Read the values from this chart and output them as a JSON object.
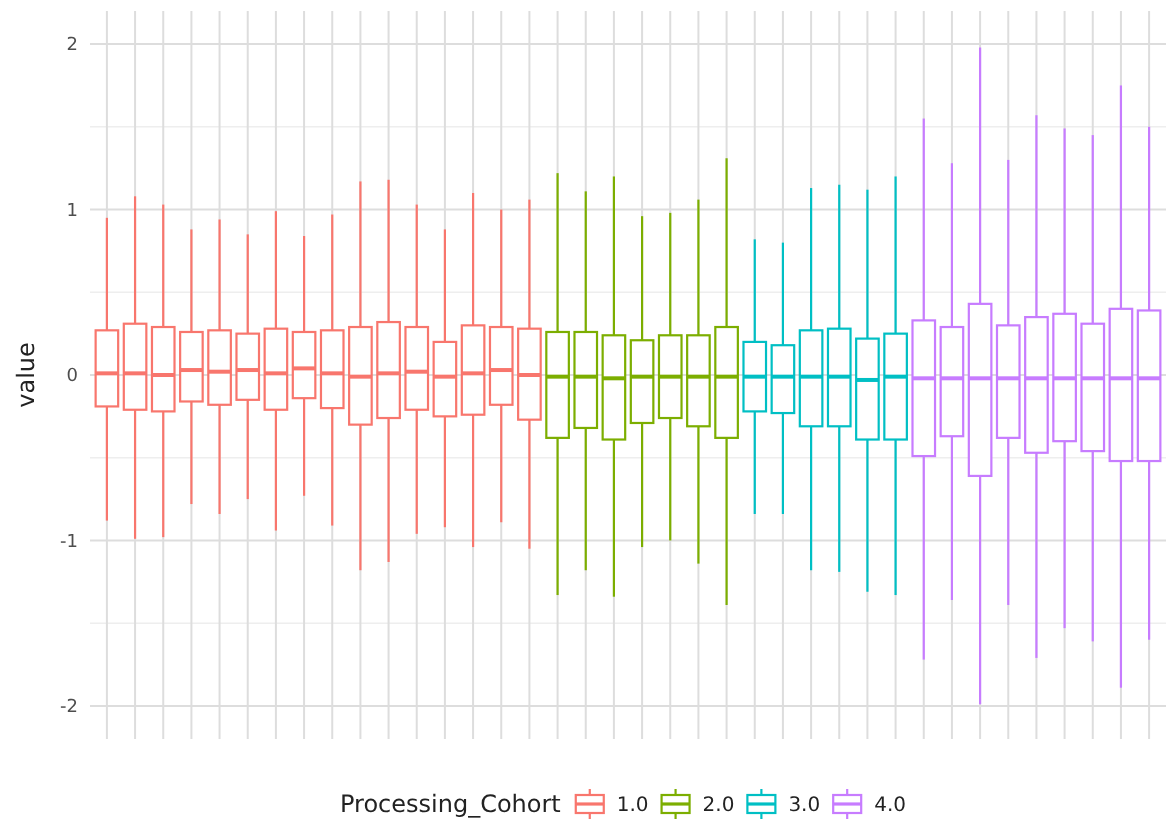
{
  "chart_data": {
    "type": "box",
    "ylabel": "value",
    "legend_title": "Processing_Cohort",
    "legend": "bottom",
    "grid": true,
    "ylim": [
      -2.2,
      2.2
    ],
    "yticks": [
      -2,
      -1,
      0,
      1,
      2
    ],
    "categories": [
      null,
      null,
      null,
      null,
      null,
      null,
      null,
      null,
      null,
      null,
      null,
      null,
      null,
      null,
      null,
      null,
      null,
      null,
      null,
      null,
      null,
      null,
      null,
      null,
      null,
      null,
      null,
      null,
      null,
      null,
      null,
      null,
      null,
      null,
      null,
      null,
      null,
      null
    ],
    "series": [
      {
        "name": "1.0",
        "color": "#f8766d",
        "boxes": [
          {
            "low": -0.88,
            "q1": -0.19,
            "median": 0.01,
            "q3": 0.27,
            "high": 0.95
          },
          {
            "low": -0.99,
            "q1": -0.21,
            "median": 0.01,
            "q3": 0.31,
            "high": 1.08
          },
          {
            "low": -0.98,
            "q1": -0.22,
            "median": 0.0,
            "q3": 0.29,
            "high": 1.03
          },
          {
            "low": -0.78,
            "q1": -0.16,
            "median": 0.03,
            "q3": 0.26,
            "high": 0.88
          },
          {
            "low": -0.84,
            "q1": -0.18,
            "median": 0.02,
            "q3": 0.27,
            "high": 0.94
          },
          {
            "low": -0.75,
            "q1": -0.15,
            "median": 0.03,
            "q3": 0.25,
            "high": 0.85
          },
          {
            "low": -0.94,
            "q1": -0.21,
            "median": 0.01,
            "q3": 0.28,
            "high": 0.99
          },
          {
            "low": -0.73,
            "q1": -0.14,
            "median": 0.04,
            "q3": 0.26,
            "high": 0.84
          },
          {
            "low": -0.91,
            "q1": -0.2,
            "median": 0.01,
            "q3": 0.27,
            "high": 0.97
          },
          {
            "low": -1.18,
            "q1": -0.3,
            "median": -0.01,
            "q3": 0.29,
            "high": 1.17
          },
          {
            "low": -1.13,
            "q1": -0.26,
            "median": 0.01,
            "q3": 0.32,
            "high": 1.18
          },
          {
            "low": -0.96,
            "q1": -0.21,
            "median": 0.02,
            "q3": 0.29,
            "high": 1.03
          },
          {
            "low": -0.92,
            "q1": -0.25,
            "median": -0.01,
            "q3": 0.2,
            "high": 0.88
          },
          {
            "low": -1.04,
            "q1": -0.24,
            "median": 0.01,
            "q3": 0.3,
            "high": 1.1
          },
          {
            "low": -0.89,
            "q1": -0.18,
            "median": 0.03,
            "q3": 0.29,
            "high": 1.0
          },
          {
            "low": -1.05,
            "q1": -0.27,
            "median": 0.0,
            "q3": 0.28,
            "high": 1.06
          },
          null,
          null,
          null,
          null,
          null,
          null,
          null,
          null,
          null,
          null,
          null,
          null,
          null,
          null,
          null,
          null,
          null,
          null,
          null,
          null,
          null,
          null
        ]
      },
      {
        "name": "2.0",
        "color": "#7cae00",
        "boxes": [
          null,
          null,
          null,
          null,
          null,
          null,
          null,
          null,
          null,
          null,
          null,
          null,
          null,
          null,
          null,
          null,
          {
            "low": -1.33,
            "q1": -0.38,
            "median": -0.01,
            "q3": 0.26,
            "high": 1.22
          },
          {
            "low": -1.18,
            "q1": -0.32,
            "median": -0.01,
            "q3": 0.26,
            "high": 1.11
          },
          {
            "low": -1.34,
            "q1": -0.39,
            "median": -0.02,
            "q3": 0.24,
            "high": 1.2
          },
          {
            "low": -1.04,
            "q1": -0.29,
            "median": -0.01,
            "q3": 0.21,
            "high": 0.96
          },
          {
            "low": -1.0,
            "q1": -0.26,
            "median": -0.01,
            "q3": 0.24,
            "high": 0.98
          },
          {
            "low": -1.14,
            "q1": -0.31,
            "median": -0.01,
            "q3": 0.24,
            "high": 1.06
          },
          {
            "low": -1.39,
            "q1": -0.38,
            "median": -0.01,
            "q3": 0.29,
            "high": 1.31
          },
          null,
          null,
          null,
          null,
          null,
          null,
          null,
          null,
          null,
          null,
          null,
          null,
          null,
          null,
          null
        ]
      },
      {
        "name": "3.0",
        "color": "#00bfc4",
        "boxes": [
          null,
          null,
          null,
          null,
          null,
          null,
          null,
          null,
          null,
          null,
          null,
          null,
          null,
          null,
          null,
          null,
          null,
          null,
          null,
          null,
          null,
          null,
          null,
          {
            "low": -0.84,
            "q1": -0.22,
            "median": -0.01,
            "q3": 0.2,
            "high": 0.82
          },
          {
            "low": -0.84,
            "q1": -0.23,
            "median": -0.01,
            "q3": 0.18,
            "high": 0.8
          },
          {
            "low": -1.18,
            "q1": -0.31,
            "median": -0.01,
            "q3": 0.27,
            "high": 1.13
          },
          {
            "low": -1.19,
            "q1": -0.31,
            "median": -0.01,
            "q3": 0.28,
            "high": 1.15
          },
          {
            "low": -1.31,
            "q1": -0.39,
            "median": -0.03,
            "q3": 0.22,
            "high": 1.12
          },
          {
            "low": -1.33,
            "q1": -0.39,
            "median": -0.01,
            "q3": 0.25,
            "high": 1.2
          },
          null,
          null,
          null,
          null,
          null,
          null,
          null,
          null,
          null
        ]
      },
      {
        "name": "4.0",
        "color": "#c77cff",
        "boxes": [
          null,
          null,
          null,
          null,
          null,
          null,
          null,
          null,
          null,
          null,
          null,
          null,
          null,
          null,
          null,
          null,
          null,
          null,
          null,
          null,
          null,
          null,
          null,
          null,
          null,
          null,
          null,
          null,
          null,
          {
            "low": -1.72,
            "q1": -0.49,
            "median": -0.02,
            "q3": 0.33,
            "high": 1.55
          },
          {
            "low": -1.36,
            "q1": -0.37,
            "median": -0.02,
            "q3": 0.29,
            "high": 1.28
          },
          {
            "low": -1.99,
            "q1": -0.61,
            "median": -0.02,
            "q3": 0.43,
            "high": 1.98
          },
          {
            "low": -1.39,
            "q1": -0.38,
            "median": -0.02,
            "q3": 0.3,
            "high": 1.3
          },
          {
            "low": -1.71,
            "q1": -0.47,
            "median": -0.02,
            "q3": 0.35,
            "high": 1.57
          },
          {
            "low": -1.53,
            "q1": -0.4,
            "median": -0.02,
            "q3": 0.37,
            "high": 1.49
          },
          {
            "low": -1.61,
            "q1": -0.46,
            "median": -0.02,
            "q3": 0.31,
            "high": 1.45
          },
          {
            "low": -1.89,
            "q1": -0.52,
            "median": -0.02,
            "q3": 0.4,
            "high": 1.75
          },
          {
            "low": -1.6,
            "q1": -0.52,
            "median": -0.02,
            "q3": 0.39,
            "high": 1.5
          }
        ]
      }
    ]
  }
}
